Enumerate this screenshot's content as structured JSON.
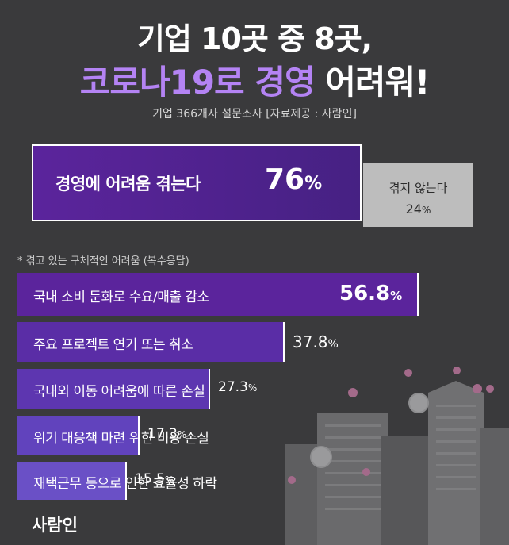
{
  "header": {
    "line1": "기업 10곳 중 8곳,",
    "line2_part1": "코로나19로 ",
    "line2_accent1": "코로나19로",
    "line2_accent2": "경영",
    "line2_end": "어려워!",
    "subtitle": "기업 366개사 설문조사  [자료제공 : 사람인]"
  },
  "summary": {
    "main_label": "경영에 어려움 겪는다",
    "main_value": "76",
    "side_label": "겪지 않는다",
    "side_value": "24",
    "pct_sign": "%"
  },
  "note": "* 겪고 있는 구체적인  어려움 (복수응답)",
  "chart_data": {
    "type": "bar",
    "orientation": "horizontal",
    "categories": [
      "국내 소비 둔화로 수요/매출 감소",
      "주요 프로젝트 연기 또는 취소",
      "국내외 이동 어려움에 따른 손실",
      "위기 대응책 마련 위한 비용 손실",
      "재택근무 등으로 인한 효율성 하락"
    ],
    "values": [
      56.8,
      37.8,
      27.3,
      17.3,
      15.5
    ],
    "unit": "%",
    "colors": [
      "#5b249c",
      "#5a2da6",
      "#5d36b0",
      "#6143bd",
      "#6a50c6"
    ]
  },
  "footer": {
    "logo": "사람인"
  },
  "colors": {
    "background": "#3a3a3c",
    "accent": "#b483f4",
    "side_box": "#bdbdbd"
  }
}
